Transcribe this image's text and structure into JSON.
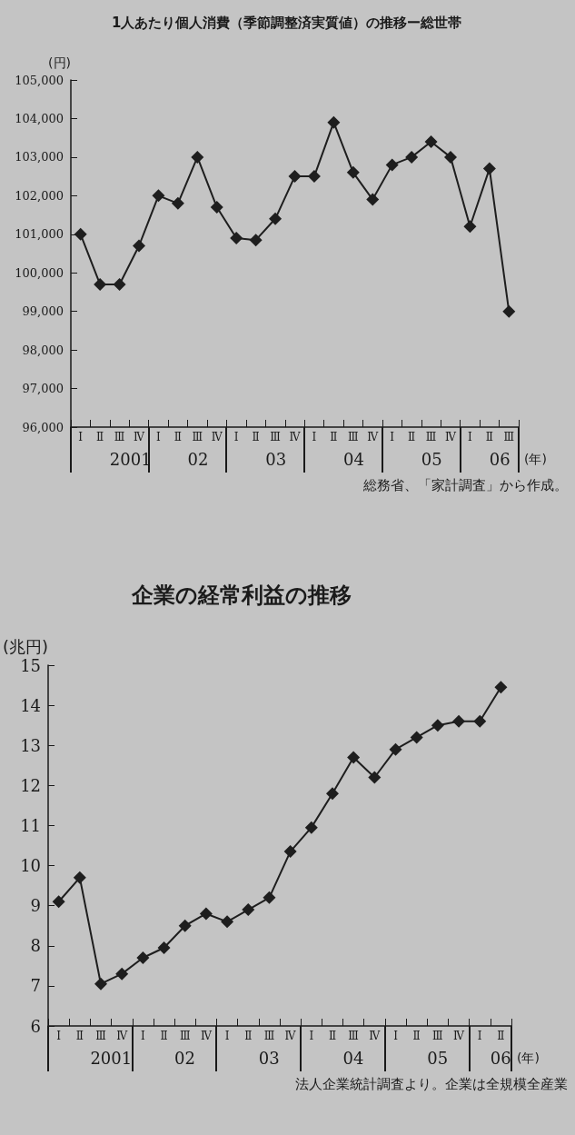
{
  "chart_data": [
    {
      "type": "line",
      "title": "1人あたり個人消費（季節調整済実質値）の推移ー総世帯",
      "ylabel": "(円)",
      "xlabel": "(年)",
      "categories": [
        "Ⅰ",
        "Ⅱ",
        "Ⅲ",
        "Ⅳ",
        "Ⅰ",
        "Ⅱ",
        "Ⅲ",
        "Ⅳ",
        "Ⅰ",
        "Ⅱ",
        "Ⅲ",
        "Ⅳ",
        "Ⅰ",
        "Ⅱ",
        "Ⅲ",
        "Ⅳ",
        "Ⅰ",
        "Ⅱ",
        "Ⅲ",
        "Ⅳ",
        "Ⅰ",
        "Ⅱ",
        "Ⅲ"
      ],
      "series": [
        {
          "color": "#1e1e1e",
          "values": [
            101000,
            99700,
            99700,
            100700,
            102000,
            101800,
            103000,
            101700,
            100900,
            100850,
            101400,
            102500,
            102500,
            103900,
            102600,
            101900,
            102800,
            103000,
            103400,
            103000,
            101200,
            102700,
            99000
          ]
        }
      ],
      "ylim": [
        96000,
        105000
      ],
      "yticks": [
        {
          "value": 96000,
          "label": "96,000"
        },
        {
          "value": 97000,
          "label": "97,000"
        },
        {
          "value": 98000,
          "label": "98,000"
        },
        {
          "value": 99000,
          "label": "99,000"
        },
        {
          "value": 100000,
          "label": "100,000"
        },
        {
          "value": 101000,
          "label": "101,000"
        },
        {
          "value": 102000,
          "label": "102,000"
        },
        {
          "value": 103000,
          "label": "103,000"
        },
        {
          "value": 104000,
          "label": "104,000"
        },
        {
          "value": 105000,
          "label": "105,000"
        }
      ],
      "marker": "diamond",
      "grid": false,
      "annotations": [
        "2001",
        "02",
        "03",
        "04",
        "05",
        "06",
        "総務省、「家計調査」から作成。"
      ]
    },
    {
      "type": "line",
      "title": "企業の経常利益の推移",
      "ylabel": "(兆円)",
      "xlabel": "(年)",
      "categories": [
        "Ⅰ",
        "Ⅱ",
        "Ⅲ",
        "Ⅳ",
        "Ⅰ",
        "Ⅱ",
        "Ⅲ",
        "Ⅳ",
        "Ⅰ",
        "Ⅱ",
        "Ⅲ",
        "Ⅳ",
        "Ⅰ",
        "Ⅱ",
        "Ⅲ",
        "Ⅳ",
        "Ⅰ",
        "Ⅱ",
        "Ⅲ",
        "Ⅳ",
        "Ⅰ",
        "Ⅱ"
      ],
      "series": [
        {
          "color": "#1e1e1e",
          "values": [
            9.1,
            9.7,
            7.05,
            7.3,
            7.7,
            7.95,
            8.5,
            8.8,
            8.6,
            8.9,
            9.2,
            10.35,
            10.95,
            11.8,
            12.7,
            12.2,
            12.9,
            13.2,
            13.5,
            13.6,
            13.6,
            14.45
          ]
        }
      ],
      "ylim": [
        6,
        15
      ],
      "yticks": [
        6,
        7,
        8,
        9,
        10,
        11,
        12,
        13,
        14,
        15
      ],
      "marker": "diamond",
      "grid": false,
      "annotations": [
        "2001",
        "02",
        "03",
        "04",
        "05",
        "06",
        "法人企業統計調査より。企業は全規模全産業"
      ]
    }
  ]
}
